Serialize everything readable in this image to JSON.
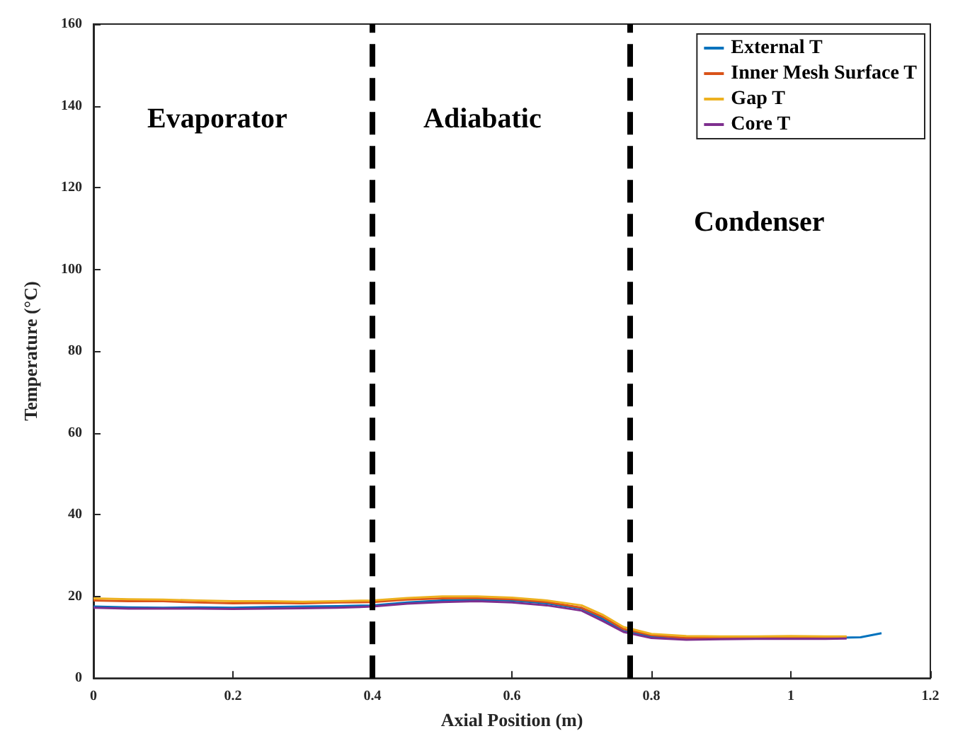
{
  "chart_data": {
    "type": "line",
    "xlabel": "Axial Position (m)",
    "ylabel": "Temperature (°C)",
    "xlim": [
      0,
      1.2
    ],
    "xticks": [
      0,
      0.2,
      0.4,
      0.6,
      0.8,
      1,
      1.2
    ],
    "ylim": [
      0,
      160
    ],
    "yticks": [
      0,
      20,
      40,
      60,
      80,
      100,
      120,
      140,
      160
    ],
    "grid": false,
    "legend": "top right",
    "marker": "none",
    "line_style": "solid",
    "series": [
      {
        "name": "External T",
        "color": "#0072bd",
        "x": [
          0,
          0.05,
          0.1,
          0.15,
          0.2,
          0.25,
          0.3,
          0.35,
          0.4,
          0.45,
          0.5,
          0.55,
          0.6,
          0.65,
          0.7,
          0.73,
          0.76,
          0.8,
          0.85,
          0.9,
          0.95,
          1,
          1.05,
          1.1,
          1.13
        ],
        "values": [
          17.5,
          17.3,
          17.2,
          17.3,
          17.2,
          17.4,
          17.5,
          17.6,
          17.8,
          18.5,
          19,
          19.2,
          19,
          18.3,
          17,
          14.5,
          11.5,
          10.2,
          9.8,
          9.7,
          9.8,
          9.9,
          9.8,
          10,
          11
        ]
      },
      {
        "name": "Inner Mesh Surface T",
        "color": "#d95319",
        "x": [
          0,
          0.05,
          0.1,
          0.15,
          0.2,
          0.25,
          0.3,
          0.35,
          0.4,
          0.45,
          0.5,
          0.55,
          0.6,
          0.65,
          0.7,
          0.73,
          0.76,
          0.8,
          0.85,
          0.9,
          0.95,
          1,
          1.05,
          1.08
        ],
        "values": [
          19,
          18.8,
          18.8,
          18.5,
          18.3,
          18.4,
          18.3,
          18.5,
          18.6,
          19.2,
          19.5,
          19.6,
          19.3,
          18.6,
          17.2,
          15,
          12,
          10.5,
          9.8,
          9.8,
          10,
          10,
          10,
          10
        ]
      },
      {
        "name": "Gap T",
        "color": "#edb120",
        "x": [
          0,
          0.05,
          0.1,
          0.15,
          0.2,
          0.25,
          0.3,
          0.35,
          0.4,
          0.45,
          0.5,
          0.55,
          0.6,
          0.65,
          0.7,
          0.73,
          0.76,
          0.8,
          0.85,
          0.9,
          0.95,
          1,
          1.05,
          1.08
        ],
        "values": [
          19.5,
          19.3,
          19.2,
          19,
          18.8,
          18.8,
          18.7,
          18.8,
          19,
          19.6,
          20,
          20,
          19.7,
          19,
          17.8,
          15.5,
          12.5,
          10.8,
          10.3,
          10.2,
          10.2,
          10.3,
          10.2,
          10.2
        ]
      },
      {
        "name": "Core T",
        "color": "#7e2f8e",
        "x": [
          0,
          0.05,
          0.1,
          0.15,
          0.2,
          0.25,
          0.3,
          0.35,
          0.4,
          0.45,
          0.5,
          0.55,
          0.6,
          0.65,
          0.7,
          0.73,
          0.76,
          0.8,
          0.85,
          0.9,
          0.95,
          1,
          1.05,
          1.08
        ],
        "values": [
          17.2,
          17,
          17,
          17,
          16.9,
          17,
          17.1,
          17.2,
          17.5,
          18.2,
          18.6,
          18.8,
          18.5,
          17.8,
          16.5,
          14,
          11.3,
          9.8,
          9.4,
          9.5,
          9.6,
          9.6,
          9.6,
          9.7
        ]
      }
    ],
    "ref_lines": [
      {
        "axis": "x",
        "value": 0.4,
        "color": "#000000",
        "line_style": "dashed"
      },
      {
        "axis": "x",
        "value": 0.773,
        "color": "#000000",
        "line_style": "dashed"
      }
    ],
    "annotations": [
      "Evaporator",
      "Adiabatic",
      "Condenser"
    ]
  }
}
